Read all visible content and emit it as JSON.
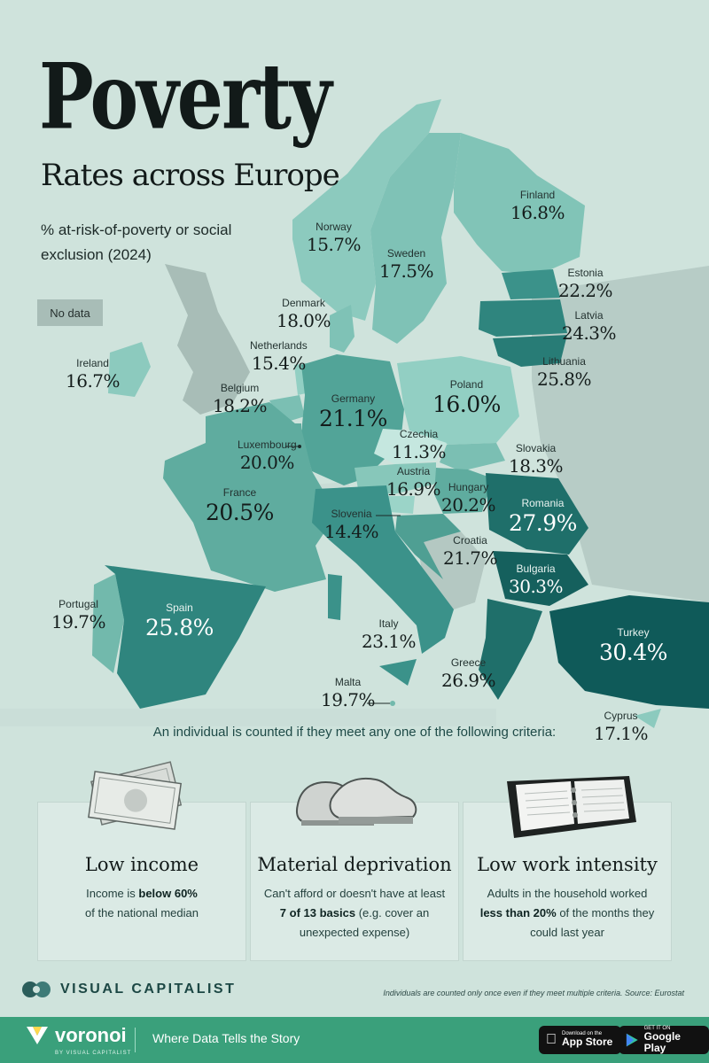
{
  "title": "Poverty",
  "subtitle": "Rates across Europe",
  "description": "% at-risk-of-poverty or social exclusion (2024)",
  "legend": {
    "no_data": "No data"
  },
  "colors": {
    "background": "#cfe3dc",
    "no_data": "#a8bdb7",
    "scale_low": "#bfe2da",
    "scale_mid": "#69b5ab",
    "scale_high": "#0f5a59",
    "footer": "#3aa07b"
  },
  "countries": {
    "norway": {
      "name": "Norway",
      "value": "15.7%"
    },
    "sweden": {
      "name": "Sweden",
      "value": "17.5%"
    },
    "finland": {
      "name": "Finland",
      "value": "16.8%"
    },
    "estonia": {
      "name": "Estonia",
      "value": "22.2%"
    },
    "latvia": {
      "name": "Latvia",
      "value": "24.3%"
    },
    "lithuania": {
      "name": "Lithuania",
      "value": "25.8%"
    },
    "denmark": {
      "name": "Denmark",
      "value": "18.0%"
    },
    "netherlands": {
      "name": "Netherlands",
      "value": "15.4%"
    },
    "ireland": {
      "name": "Ireland",
      "value": "16.7%"
    },
    "belgium": {
      "name": "Belgium",
      "value": "18.2%"
    },
    "germany": {
      "name": "Germany",
      "value": "21.1%"
    },
    "poland": {
      "name": "Poland",
      "value": "16.0%"
    },
    "czechia": {
      "name": "Czechia",
      "value": "11.3%"
    },
    "slovakia": {
      "name": "Slovakia",
      "value": "18.3%"
    },
    "luxembourg": {
      "name": "Luxembourg",
      "value": "20.0%"
    },
    "austria": {
      "name": "Austria",
      "value": "16.9%"
    },
    "hungary": {
      "name": "Hungary",
      "value": "20.2%"
    },
    "romania": {
      "name": "Romania",
      "value": "27.9%"
    },
    "france": {
      "name": "France",
      "value": "20.5%"
    },
    "slovenia": {
      "name": "Slovenia",
      "value": "14.4%"
    },
    "croatia": {
      "name": "Croatia",
      "value": "21.7%"
    },
    "bulgaria": {
      "name": "Bulgaria",
      "value": "30.3%"
    },
    "portugal": {
      "name": "Portugal",
      "value": "19.7%"
    },
    "spain": {
      "name": "Spain",
      "value": "25.8%"
    },
    "italy": {
      "name": "Italy",
      "value": "23.1%"
    },
    "turkey": {
      "name": "Turkey",
      "value": "30.4%"
    },
    "greece": {
      "name": "Greece",
      "value": "26.9%"
    },
    "malta": {
      "name": "Malta",
      "value": "19.7%"
    },
    "cyprus": {
      "name": "Cyprus",
      "value": "17.1%"
    }
  },
  "criteria": {
    "intro": "An individual is counted if they meet any one of the following criteria:",
    "items": [
      {
        "title": "Low income",
        "line1": "Income is ",
        "bold1": "below 60%",
        "line2": "of the national median",
        "bold2": "",
        "line3": "",
        "icon": "banknotes-illustration"
      },
      {
        "title": "Material deprivation",
        "line1": "Can't afford or doesn't have at least ",
        "bold1": "7 of 13 basics",
        "line2": " (e.g. cover an unexpected expense)",
        "bold2": "",
        "line3": "",
        "icon": "sneakers-illustration"
      },
      {
        "title": "Low work intensity",
        "line1": "Adults in the household worked ",
        "bold1": "less than 20%",
        "line2": " of the months they could last year",
        "bold2": "",
        "line3": "",
        "icon": "planner-illustration"
      }
    ]
  },
  "note": "Individuals are counted only once even if they meet multiple criteria. Source: Eurostat",
  "publisher": {
    "name": "VISUAL CAPITALIST"
  },
  "footer": {
    "brand": "voronoi",
    "brand_sub": "BY VISUAL CAPITALIST",
    "tagline": "Where Data Tells the Story",
    "app_store": {
      "top": "Download on the",
      "name": "App Store"
    },
    "google_play": {
      "top": "GET IT ON",
      "name": "Google Play"
    }
  }
}
